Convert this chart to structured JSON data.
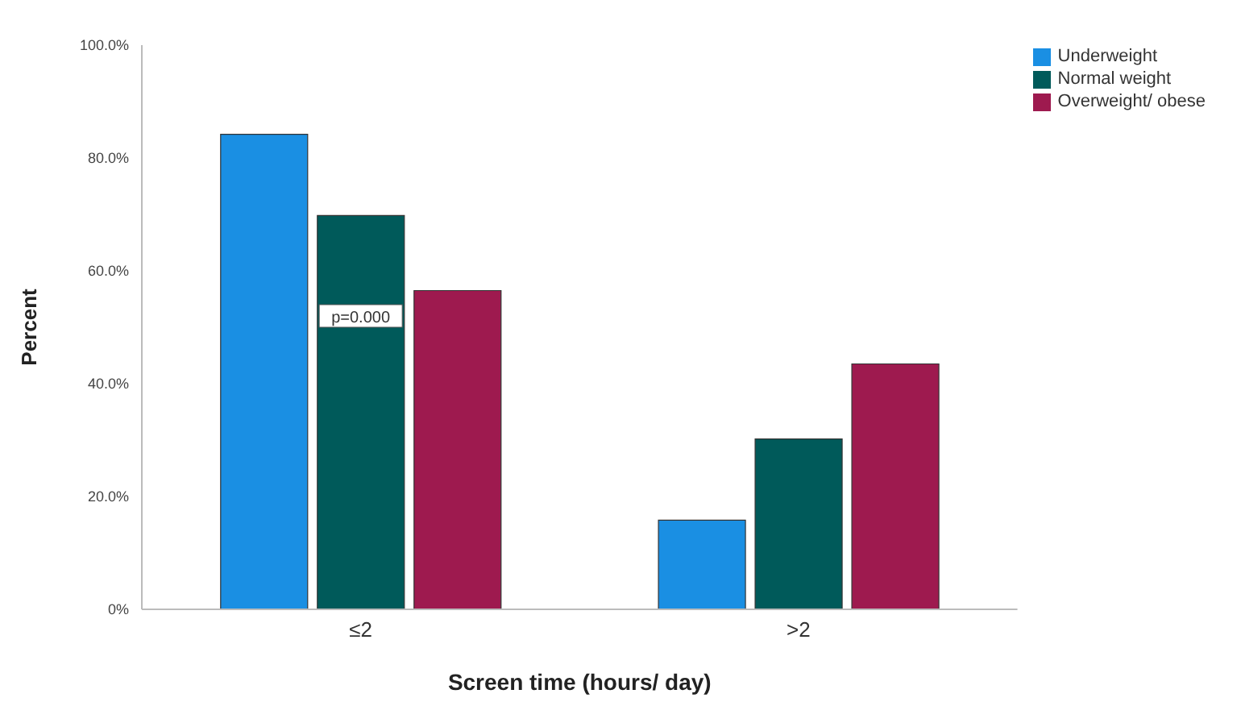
{
  "chart_data": {
    "type": "bar",
    "xlabel": "Screen time (hours/ day)",
    "ylabel": "Percent",
    "categories": [
      "≤2",
      ">2"
    ],
    "series": [
      {
        "name": "Underweight",
        "color": "#1a8fe3",
        "values": [
          84.2,
          15.8
        ]
      },
      {
        "name": "Normal weight",
        "color": "#005a5a",
        "values": [
          69.8,
          30.2
        ]
      },
      {
        "name": "Overweight/ obese",
        "color": "#9e1a4f",
        "values": [
          56.5,
          43.5
        ]
      }
    ],
    "ylim": [
      0,
      100
    ],
    "yticks": [
      {
        "value": 0,
        "label": "0%"
      },
      {
        "value": 20,
        "label": "20.0%"
      },
      {
        "value": 40,
        "label": "40.0%"
      },
      {
        "value": 60,
        "label": "60.0%"
      },
      {
        "value": 80,
        "label": "80.0%"
      },
      {
        "value": 100,
        "label": "100.0%"
      }
    ],
    "annotations": [
      "p=0.000"
    ],
    "legend": "top right",
    "grid": false
  }
}
